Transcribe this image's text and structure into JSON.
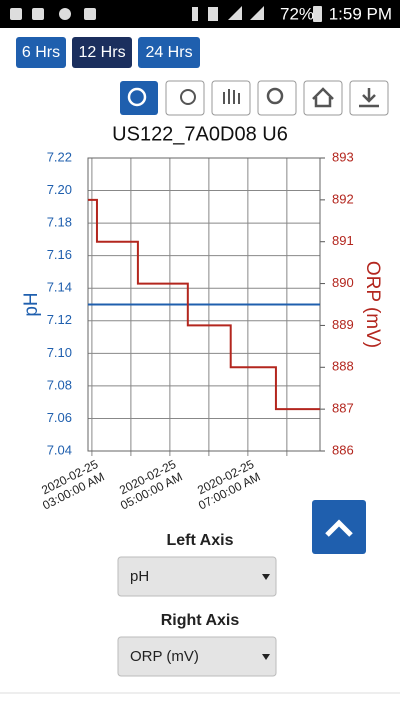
{
  "status_bar": {
    "battery": "72%",
    "time": "1:59 PM"
  },
  "range_buttons": [
    "6 Hrs",
    "12 Hrs",
    "24 Hrs"
  ],
  "chart_data": {
    "type": "line",
    "title": "US122_7A0D08 U6",
    "ylabel": "pH",
    "y2label": "ORP (mV)",
    "xlim": [
      2.9,
      8.85
    ],
    "xticks": [
      {
        "value": 3,
        "label": "2020-02-25 03:00:00 AM"
      },
      {
        "value": 4,
        "label": null
      },
      {
        "value": 5,
        "label": "2020-02-25 05:00:00 AM"
      },
      {
        "value": 6,
        "label": null
      },
      {
        "value": 7,
        "label": "2020-02-25 07:00:00 AM"
      },
      {
        "value": 8,
        "label": null
      }
    ],
    "ylim": [
      7.04,
      7.22
    ],
    "yticks": [
      7.04,
      7.06,
      7.08,
      {
        "value": 7.1,
        "label": "7.10"
      },
      7.12,
      7.14,
      7.16,
      7.18,
      {
        "value": 7.2,
        "label": "7.20"
      },
      7.22
    ],
    "y2lim": [
      886,
      893
    ],
    "y2ticks": [
      886,
      887,
      888,
      889,
      890,
      891,
      892,
      893
    ],
    "grid": true,
    "ycolor": "#1f5fae",
    "y2color": "#b3261e",
    "series": [
      {
        "name": "pH",
        "color": "#1f5fae",
        "x": [
          2.9,
          8.85
        ],
        "values": [
          7.13,
          7.13
        ]
      },
      {
        "name": "ORP (mV)",
        "color": "#b3261e",
        "axis": "y2",
        "x": [
          2.9,
          3.13,
          3.13,
          4.18,
          4.18,
          5.46,
          5.46,
          6.56,
          6.56,
          7.72,
          7.72,
          8.85
        ],
        "values": [
          892,
          892,
          891,
          891,
          890,
          890,
          889,
          889,
          888,
          888,
          887,
          887
        ]
      }
    ]
  },
  "controls": {
    "left_axis_label": "Left Axis",
    "left_axis_value": "pH",
    "right_axis_label": "Right Axis",
    "right_axis_value": "ORP (mV)"
  }
}
